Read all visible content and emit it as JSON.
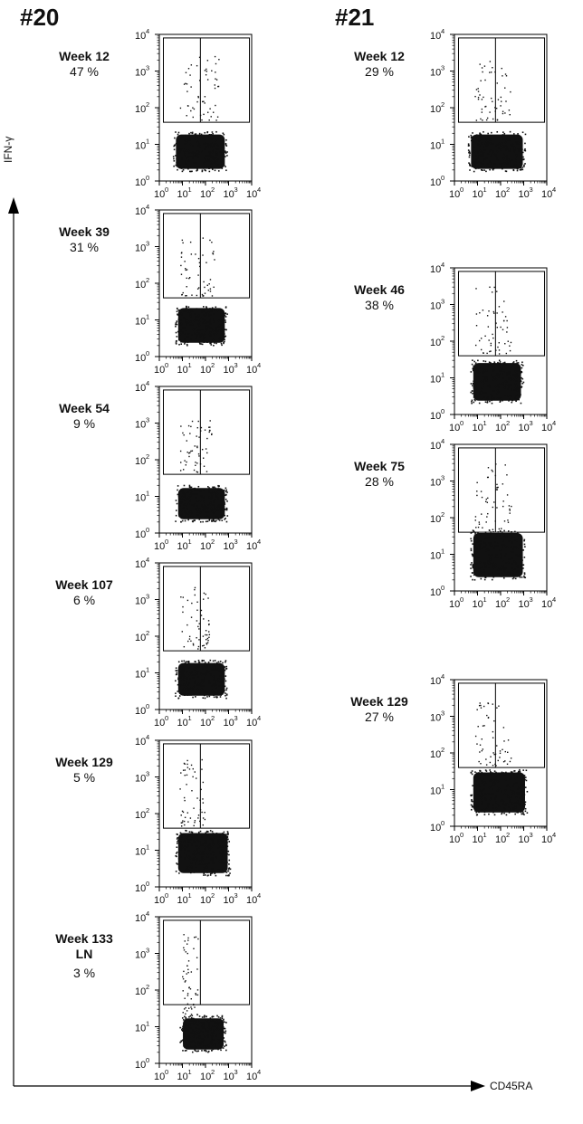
{
  "columns": [
    {
      "title": "#20"
    },
    {
      "title": "#21"
    }
  ],
  "axes": {
    "y_label": "IFN-γ",
    "x_label": "CD45RA"
  },
  "chart_data": [
    {
      "type": "scatter",
      "animal": "#20",
      "label": "Week 12",
      "percent": "47 %",
      "xscale": "log",
      "yscale": "log",
      "xlim": [
        1,
        10000
      ],
      "ylim": [
        1,
        10000
      ],
      "x_ticks": [
        "10",
        "10",
        "10",
        "10",
        "10"
      ],
      "x_tick_exp": [
        "0",
        "1",
        "2",
        "3",
        "4"
      ],
      "y_ticks": [
        "10",
        "10",
        "10",
        "10",
        "10"
      ],
      "y_tick_exp": [
        "0",
        "1",
        "2",
        "3",
        "4"
      ],
      "gate": {
        "x_range": [
          1.5,
          8000
        ],
        "y_range": [
          40,
          8000
        ],
        "x_split": 60
      },
      "populations": [
        {
          "kind": "dense",
          "x_range": [
            4,
            900
          ],
          "y_range": [
            1.8,
            22
          ]
        },
        {
          "kind": "sparse",
          "x_range": [
            8,
            400
          ],
          "y_range": [
            45,
            2500
          ]
        }
      ]
    },
    {
      "type": "scatter",
      "animal": "#20",
      "label": "Week 39",
      "percent": "31 %",
      "xscale": "log",
      "yscale": "log",
      "xlim": [
        1,
        10000
      ],
      "ylim": [
        1,
        10000
      ],
      "gate": {
        "x_range": [
          1.5,
          8000
        ],
        "y_range": [
          40,
          8000
        ],
        "x_split": 60
      },
      "populations": [
        {
          "kind": "dense",
          "x_range": [
            5,
            900
          ],
          "y_range": [
            2,
            25
          ]
        },
        {
          "kind": "sparse",
          "x_range": [
            8,
            300
          ],
          "y_range": [
            45,
            2000
          ]
        }
      ]
    },
    {
      "type": "scatter",
      "animal": "#20",
      "label": "Week 54",
      "percent": "9 %",
      "xscale": "log",
      "yscale": "log",
      "xlim": [
        1,
        10000
      ],
      "ylim": [
        1,
        10000
      ],
      "gate": {
        "x_range": [
          1.5,
          8000
        ],
        "y_range": [
          40,
          8000
        ],
        "x_split": 60
      },
      "populations": [
        {
          "kind": "dense",
          "x_range": [
            5,
            900
          ],
          "y_range": [
            2,
            20
          ]
        },
        {
          "kind": "sparse",
          "x_range": [
            8,
            200
          ],
          "y_range": [
            45,
            1500
          ]
        }
      ]
    },
    {
      "type": "scatter",
      "animal": "#20",
      "label": "Week 107",
      "percent": "6 %",
      "xscale": "log",
      "yscale": "log",
      "xlim": [
        1,
        10000
      ],
      "ylim": [
        1,
        10000
      ],
      "gate": {
        "x_range": [
          1.5,
          8000
        ],
        "y_range": [
          40,
          8000
        ],
        "x_split": 60
      },
      "populations": [
        {
          "kind": "dense",
          "x_range": [
            5,
            900
          ],
          "y_range": [
            2,
            22
          ]
        },
        {
          "kind": "sparse",
          "x_range": [
            8,
            150
          ],
          "y_range": [
            45,
            2500
          ]
        }
      ]
    },
    {
      "type": "scatter",
      "animal": "#20",
      "label": "Week 129",
      "percent": "5 %",
      "xscale": "log",
      "yscale": "log",
      "xlim": [
        1,
        10000
      ],
      "ylim": [
        1,
        10000
      ],
      "gate": {
        "x_range": [
          1.5,
          8000
        ],
        "y_range": [
          40,
          8000
        ],
        "x_split": 60
      },
      "populations": [
        {
          "kind": "dense",
          "x_range": [
            5,
            1200
          ],
          "y_range": [
            2,
            35
          ]
        },
        {
          "kind": "sparse",
          "x_range": [
            8,
            100
          ],
          "y_range": [
            45,
            3000
          ]
        }
      ]
    },
    {
      "type": "scatter",
      "animal": "#20",
      "label": "Week 133",
      "sublabel": "LN",
      "percent": "3 %",
      "xscale": "log",
      "yscale": "log",
      "xlim": [
        1,
        10000
      ],
      "ylim": [
        1,
        10000
      ],
      "gate": {
        "x_range": [
          1.5,
          8000
        ],
        "y_range": [
          40,
          8000
        ],
        "x_split": 60
      },
      "populations": [
        {
          "kind": "dense",
          "x_range": [
            8,
            800
          ],
          "y_range": [
            2,
            20
          ]
        },
        {
          "kind": "sparse",
          "x_range": [
            10,
            50
          ],
          "y_range": [
            20,
            4000
          ]
        }
      ]
    },
    {
      "type": "scatter",
      "animal": "#21",
      "label": "Week 12",
      "percent": "29 %",
      "xscale": "log",
      "yscale": "log",
      "xlim": [
        1,
        10000
      ],
      "ylim": [
        1,
        10000
      ],
      "gate": {
        "x_range": [
          1.5,
          8000
        ],
        "y_range": [
          40,
          8000
        ],
        "x_split": 60
      },
      "populations": [
        {
          "kind": "dense",
          "x_range": [
            4,
            1200
          ],
          "y_range": [
            1.8,
            22
          ]
        },
        {
          "kind": "sparse",
          "x_range": [
            8,
            300
          ],
          "y_range": [
            45,
            2500
          ]
        }
      ]
    },
    {
      "type": "scatter",
      "animal": "#21",
      "label": "Week 46",
      "percent": "38 %",
      "xscale": "log",
      "yscale": "log",
      "xlim": [
        1,
        10000
      ],
      "ylim": [
        1,
        10000
      ],
      "gate": {
        "x_range": [
          1.5,
          8000
        ],
        "y_range": [
          40,
          8000
        ],
        "x_split": 60
      },
      "populations": [
        {
          "kind": "dense",
          "x_range": [
            5,
            1000
          ],
          "y_range": [
            2,
            30
          ]
        },
        {
          "kind": "sparse",
          "x_range": [
            8,
            300
          ],
          "y_range": [
            45,
            3000
          ]
        }
      ]
    },
    {
      "type": "scatter",
      "animal": "#21",
      "label": "Week 75",
      "percent": "28 %",
      "xscale": "log",
      "yscale": "log",
      "xlim": [
        1,
        10000
      ],
      "ylim": [
        1,
        10000
      ],
      "gate": {
        "x_range": [
          1.5,
          8000
        ],
        "y_range": [
          40,
          8000
        ],
        "x_split": 60
      },
      "populations": [
        {
          "kind": "dense",
          "x_range": [
            5,
            1200
          ],
          "y_range": [
            2,
            45
          ]
        },
        {
          "kind": "sparse",
          "x_range": [
            8,
            300
          ],
          "y_range": [
            45,
            3000
          ]
        }
      ]
    },
    {
      "type": "scatter",
      "animal": "#21",
      "label": "Week 129",
      "percent": "27 %",
      "xscale": "log",
      "yscale": "log",
      "xlim": [
        1,
        10000
      ],
      "ylim": [
        1,
        10000
      ],
      "gate": {
        "x_range": [
          1.5,
          8000
        ],
        "y_range": [
          40,
          8000
        ],
        "x_split": 60
      },
      "populations": [
        {
          "kind": "dense",
          "x_range": [
            5,
            1500
          ],
          "y_range": [
            2,
            35
          ]
        },
        {
          "kind": "sparse",
          "x_range": [
            8,
            300
          ],
          "y_range": [
            45,
            2500
          ]
        }
      ]
    }
  ]
}
